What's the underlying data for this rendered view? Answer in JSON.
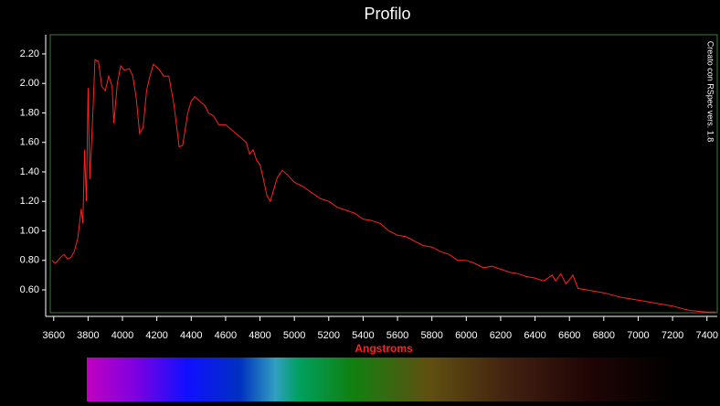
{
  "chart_data": {
    "type": "line",
    "title": "Profilo",
    "xlabel": "Angstroms",
    "annotation": "Creato con RSpec vers. 1.8",
    "x": [
      3590,
      3610,
      3640,
      3660,
      3680,
      3700,
      3720,
      3740,
      3760,
      3770,
      3780,
      3790,
      3800,
      3810,
      3820,
      3830,
      3840,
      3860,
      3880,
      3900,
      3920,
      3940,
      3950,
      3970,
      3990,
      4010,
      4040,
      4060,
      4080,
      4100,
      4120,
      4140,
      4160,
      4180,
      4210,
      4240,
      4270,
      4300,
      4330,
      4350,
      4380,
      4400,
      4420,
      4450,
      4480,
      4500,
      4530,
      4560,
      4600,
      4640,
      4680,
      4720,
      4740,
      4760,
      4780,
      4800,
      4820,
      4840,
      4860,
      4880,
      4900,
      4930,
      4960,
      5000,
      5050,
      5100,
      5150,
      5200,
      5250,
      5300,
      5350,
      5400,
      5450,
      5500,
      5550,
      5600,
      5650,
      5700,
      5750,
      5800,
      5850,
      5900,
      5950,
      6000,
      6050,
      6100,
      6150,
      6200,
      6250,
      6300,
      6350,
      6400,
      6450,
      6500,
      6520,
      6550,
      6580,
      6620,
      6650,
      6700,
      6800,
      6900,
      7000,
      7100,
      7200,
      7300,
      7400,
      7450
    ],
    "series": [
      {
        "name": "Profilo",
        "color": "#ff2020",
        "values": [
          0.8,
          0.78,
          0.82,
          0.84,
          0.81,
          0.82,
          0.86,
          0.95,
          1.15,
          1.05,
          1.55,
          1.2,
          1.97,
          1.35,
          1.6,
          1.85,
          2.16,
          2.15,
          1.98,
          1.95,
          2.05,
          1.98,
          1.73,
          2.0,
          2.12,
          2.09,
          2.1,
          2.05,
          1.9,
          1.66,
          1.7,
          1.95,
          2.05,
          2.13,
          2.1,
          2.05,
          2.05,
          1.85,
          1.57,
          1.58,
          1.8,
          1.88,
          1.91,
          1.88,
          1.85,
          1.8,
          1.78,
          1.72,
          1.72,
          1.68,
          1.64,
          1.6,
          1.52,
          1.55,
          1.48,
          1.45,
          1.35,
          1.24,
          1.2,
          1.28,
          1.36,
          1.41,
          1.38,
          1.33,
          1.3,
          1.26,
          1.22,
          1.2,
          1.16,
          1.14,
          1.12,
          1.08,
          1.07,
          1.05,
          1.0,
          0.97,
          0.96,
          0.93,
          0.9,
          0.89,
          0.86,
          0.84,
          0.8,
          0.8,
          0.78,
          0.75,
          0.76,
          0.74,
          0.72,
          0.71,
          0.69,
          0.68,
          0.66,
          0.7,
          0.66,
          0.71,
          0.64,
          0.7,
          0.61,
          0.6,
          0.58,
          0.55,
          0.53,
          0.51,
          0.49,
          0.46,
          0.45,
          0.45
        ]
      }
    ],
    "xlim": [
      3580,
      7460
    ],
    "ylim": [
      0.445,
      2.33
    ],
    "xticks": [
      3600,
      3800,
      4000,
      4200,
      4400,
      4600,
      4800,
      5000,
      5200,
      5400,
      5600,
      5800,
      6000,
      6200,
      6400,
      6600,
      6800,
      7000,
      7200,
      7400
    ],
    "yticks": [
      {
        "value": 0.6,
        "label": "0.60"
      },
      {
        "value": 0.8,
        "label": "0.80"
      },
      {
        "value": 1.0,
        "label": "1.00"
      },
      {
        "value": 1.2,
        "label": "1.20"
      },
      {
        "value": 1.4,
        "label": "1.40"
      },
      {
        "value": 1.6,
        "label": "1.60"
      },
      {
        "value": 1.8,
        "label": "1.80"
      },
      {
        "value": 2.0,
        "label": "2.00"
      },
      {
        "value": 2.2,
        "label": "2.20"
      }
    ]
  }
}
